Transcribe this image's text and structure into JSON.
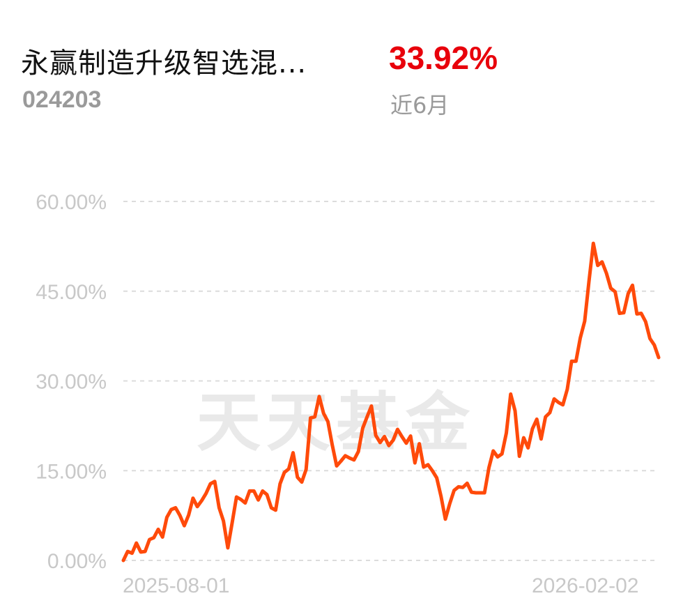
{
  "header": {
    "fund_name": "永赢制造升级智选混...",
    "fund_code": "024203",
    "return_value": "33.92%",
    "return_period": "近6月"
  },
  "colors": {
    "return_positive": "#e8000b",
    "line": "#ff4a0a",
    "grid": "#dcdcdc",
    "tick_text": "#c8c8c8",
    "watermark": "#e9e9e9"
  },
  "watermark": "天天基金",
  "chart_data": {
    "type": "line",
    "ylim": [
      0,
      60
    ],
    "yticks": [
      0,
      15,
      30,
      45,
      60
    ],
    "ytick_labels": [
      "0.00%",
      "15.00%",
      "30.00%",
      "45.00%",
      "60.00%"
    ],
    "xtick_labels": [
      "2025-08-01",
      "2026-02-02"
    ],
    "grid": true,
    "legend": "none",
    "series": [
      {
        "values": [
          0,
          1.5,
          1.2,
          2.9,
          1.4,
          1.5,
          3.5,
          3.8,
          5.2,
          3.9,
          7.2,
          8.5,
          8.8,
          7.5,
          5.8,
          7.6,
          10.4,
          9.0,
          10.0,
          11.2,
          12.8,
          13.2,
          8.8,
          6.6,
          2.1,
          6.3,
          10.6,
          10.2,
          9.6,
          11.6,
          11.6,
          10.1,
          11.6,
          11.0,
          8.8,
          8.4,
          12.8,
          14.7,
          15.3,
          18.0,
          13.9,
          13.1,
          15.2,
          23.8,
          24.0,
          27.4,
          24.6,
          23.2,
          19.3,
          15.8,
          16.6,
          17.5,
          17.1,
          16.8,
          18.2,
          22.1,
          24.0,
          25.8,
          20.9,
          19.7,
          20.7,
          19.2,
          20.1,
          21.9,
          20.7,
          19.6,
          20.8,
          16.3,
          19.5,
          15.6,
          16.0,
          15.0,
          13.8,
          10.7,
          6.9,
          9.5,
          11.7,
          12.3,
          12.2,
          12.9,
          11.4,
          11.3,
          11.3,
          11.3,
          15.5,
          18.3,
          17.3,
          17.8,
          21.3,
          27.8,
          25.0,
          17.4,
          20.5,
          18.8,
          22.0,
          23.6,
          20.3,
          24.0,
          24.7,
          27.0,
          26.4,
          26.0,
          28.6,
          33.3,
          33.3,
          37.2,
          40.0,
          46.7,
          53.0,
          49.3,
          49.9,
          48.0,
          45.5,
          44.9,
          41.3,
          41.4,
          44.6,
          46.0,
          41.2,
          41.3,
          39.9,
          37.1,
          36.0,
          33.92
        ]
      }
    ]
  }
}
